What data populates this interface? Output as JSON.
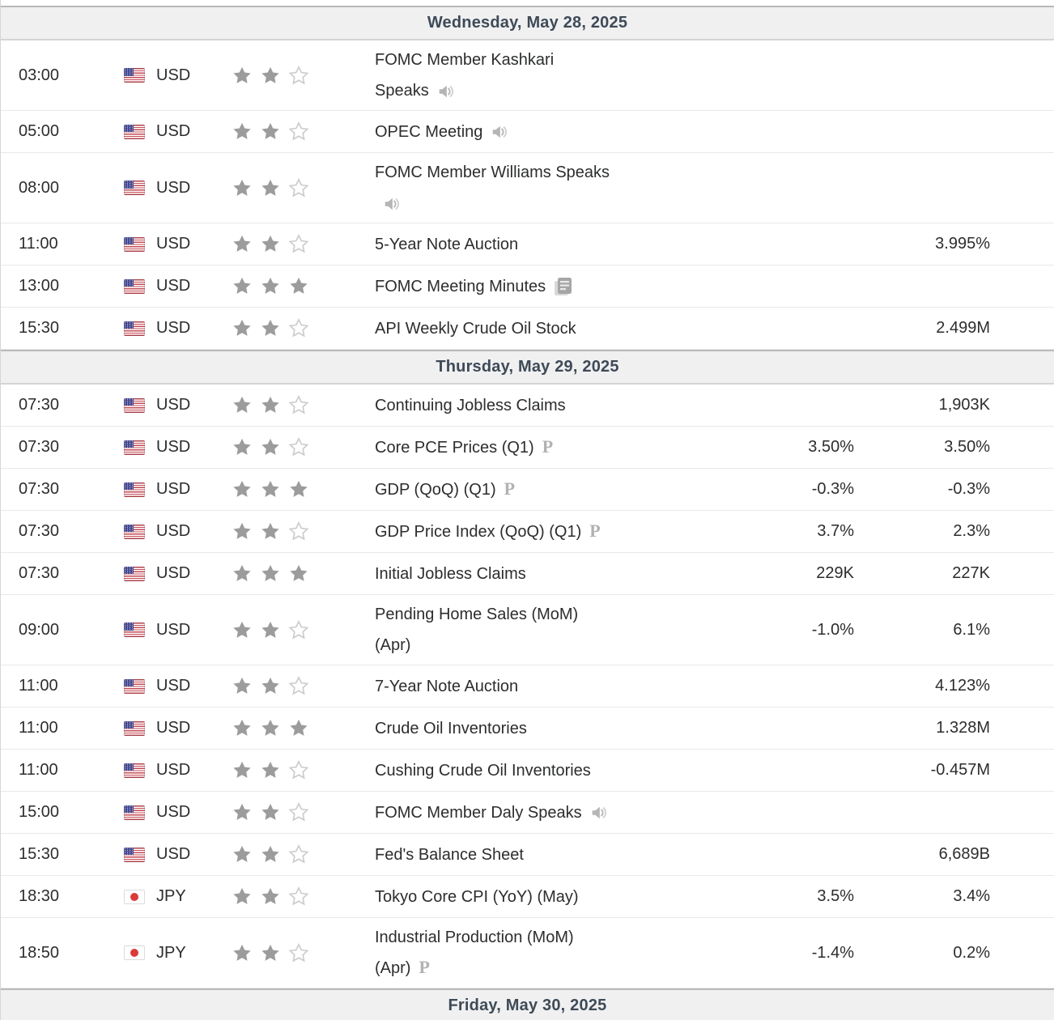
{
  "theme": {
    "text": "#2c2d2e",
    "day_header_bg": "#f0f0f1",
    "day_header_text": "#3e4a57",
    "day_header_border_top": "#b9b9b9",
    "day_header_border_bottom": "#d4d4d4",
    "row_border": "#e9e9e9",
    "star_filled": "#9c9c9c",
    "star_empty_stroke": "#cccccc",
    "icon_gray": "#b5b5b5",
    "us_flag_red": "#c34b55",
    "us_flag_blue": "#474a8f",
    "jp_flag_red": "#db3a3a"
  },
  "days": [
    {
      "label": "Wednesday, May 28, 2025",
      "events": [
        {
          "time": "03:00",
          "currency": "USD",
          "flag": "us",
          "stars": 2,
          "name": "FOMC Member Kashkari\nSpeaks",
          "icon": "speaker-icon",
          "icon_break": false,
          "forecast": "",
          "previous": ""
        },
        {
          "time": "05:00",
          "currency": "USD",
          "flag": "us",
          "stars": 2,
          "name": "OPEC Meeting",
          "icon": "speaker-icon",
          "icon_break": false,
          "forecast": "",
          "previous": ""
        },
        {
          "time": "08:00",
          "currency": "USD",
          "flag": "us",
          "stars": 2,
          "name": "FOMC Member Williams Speaks",
          "icon": "speaker-icon",
          "icon_break": true,
          "forecast": "",
          "previous": ""
        },
        {
          "time": "11:00",
          "currency": "USD",
          "flag": "us",
          "stars": 2,
          "name": "5-Year Note Auction",
          "icon": null,
          "icon_break": false,
          "forecast": "",
          "previous": "3.995%"
        },
        {
          "time": "13:00",
          "currency": "USD",
          "flag": "us",
          "stars": 3,
          "name": "FOMC Meeting Minutes",
          "icon": "report-icon",
          "icon_break": false,
          "forecast": "",
          "previous": ""
        },
        {
          "time": "15:30",
          "currency": "USD",
          "flag": "us",
          "stars": 2,
          "name": "API Weekly Crude Oil Stock",
          "icon": null,
          "icon_break": false,
          "forecast": "",
          "previous": "2.499M"
        }
      ]
    },
    {
      "label": "Thursday, May 29, 2025",
      "events": [
        {
          "time": "07:30",
          "currency": "USD",
          "flag": "us",
          "stars": 2,
          "name": "Continuing Jobless Claims",
          "icon": null,
          "icon_break": false,
          "forecast": "",
          "previous": "1,903K"
        },
        {
          "time": "07:30",
          "currency": "USD",
          "flag": "us",
          "stars": 2,
          "name": "Core PCE Prices (Q1)",
          "icon": "preliminary-icon",
          "icon_break": false,
          "forecast": "3.50%",
          "previous": "3.50%"
        },
        {
          "time": "07:30",
          "currency": "USD",
          "flag": "us",
          "stars": 3,
          "name": "GDP (QoQ) (Q1)",
          "icon": "preliminary-icon",
          "icon_break": false,
          "forecast": "-0.3%",
          "previous": "-0.3%"
        },
        {
          "time": "07:30",
          "currency": "USD",
          "flag": "us",
          "stars": 2,
          "name": "GDP Price Index (QoQ) (Q1)",
          "icon": "preliminary-icon",
          "icon_break": false,
          "forecast": "3.7%",
          "previous": "2.3%"
        },
        {
          "time": "07:30",
          "currency": "USD",
          "flag": "us",
          "stars": 3,
          "name": "Initial Jobless Claims",
          "icon": null,
          "icon_break": false,
          "forecast": "229K",
          "previous": "227K"
        },
        {
          "time": "09:00",
          "currency": "USD",
          "flag": "us",
          "stars": 2,
          "name": "Pending Home Sales (MoM)\n(Apr)",
          "icon": null,
          "icon_break": false,
          "forecast": "-1.0%",
          "previous": "6.1%"
        },
        {
          "time": "11:00",
          "currency": "USD",
          "flag": "us",
          "stars": 2,
          "name": "7-Year Note Auction",
          "icon": null,
          "icon_break": false,
          "forecast": "",
          "previous": "4.123%"
        },
        {
          "time": "11:00",
          "currency": "USD",
          "flag": "us",
          "stars": 3,
          "name": "Crude Oil Inventories",
          "icon": null,
          "icon_break": false,
          "forecast": "",
          "previous": "1.328M"
        },
        {
          "time": "11:00",
          "currency": "USD",
          "flag": "us",
          "stars": 2,
          "name": "Cushing Crude Oil Inventories",
          "icon": null,
          "icon_break": false,
          "forecast": "",
          "previous": "-0.457M"
        },
        {
          "time": "15:00",
          "currency": "USD",
          "flag": "us",
          "stars": 2,
          "name": "FOMC Member Daly Speaks",
          "icon": "speaker-icon",
          "icon_break": false,
          "forecast": "",
          "previous": ""
        },
        {
          "time": "15:30",
          "currency": "USD",
          "flag": "us",
          "stars": 2,
          "name": "Fed's Balance Sheet",
          "icon": null,
          "icon_break": false,
          "forecast": "",
          "previous": "6,689B"
        },
        {
          "time": "18:30",
          "currency": "JPY",
          "flag": "jp",
          "stars": 2,
          "name": "Tokyo Core CPI (YoY) (May)",
          "icon": null,
          "icon_break": false,
          "forecast": "3.5%",
          "previous": "3.4%"
        },
        {
          "time": "18:50",
          "currency": "JPY",
          "flag": "jp",
          "stars": 2,
          "name": "Industrial Production (MoM)\n(Apr)",
          "icon": "preliminary-icon",
          "icon_break": false,
          "forecast": "-1.4%",
          "previous": "0.2%"
        }
      ]
    },
    {
      "label": "Friday, May 30, 2025",
      "events": []
    }
  ]
}
